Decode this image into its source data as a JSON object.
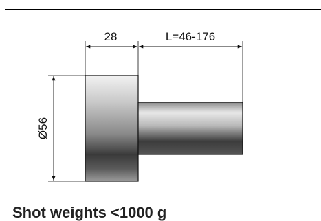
{
  "drawing": {
    "dim_flange_width": "28",
    "dim_shaft_length": "L=46-176",
    "dim_diameter": "Ø56"
  },
  "caption": "Shot weights <1000 g"
}
